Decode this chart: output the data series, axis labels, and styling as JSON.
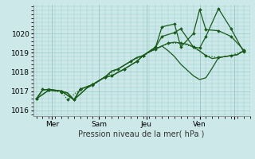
{
  "bg_color": "#cce8e8",
  "grid_color": "#99cccc",
  "line_color": "#1a5c1a",
  "ylim": [
    1015.7,
    1021.5
  ],
  "yticks": [
    1016,
    1017,
    1018,
    1019,
    1020
  ],
  "ylabel": "Pression niveau de la mer( hPa )",
  "xlim": [
    -0.5,
    34
  ],
  "xtick_pos": [
    2.5,
    10,
    17.5,
    26,
    31.5
  ],
  "xtick_labels": [
    "Mer",
    "Sam",
    "Jeu",
    "Ven",
    ""
  ],
  "vline_pos": [
    2.5,
    10,
    17.5,
    26,
    31.5
  ],
  "series": [
    {
      "x": [
        0,
        1,
        2,
        3,
        4,
        5,
        6,
        7,
        8,
        9,
        10,
        11,
        12,
        13,
        14,
        15,
        16,
        17,
        18,
        19,
        20,
        21,
        22,
        23,
        24,
        25,
        26,
        27,
        28,
        29,
        30,
        31,
        32,
        33
      ],
      "y": [
        1016.6,
        1017.05,
        1017.1,
        1017.05,
        1017.0,
        1016.9,
        1016.55,
        1016.85,
        1017.15,
        1017.35,
        1017.55,
        1017.75,
        1018.05,
        1018.15,
        1018.35,
        1018.55,
        1018.75,
        1018.85,
        1019.05,
        1019.2,
        1019.35,
        1019.5,
        1019.55,
        1019.5,
        1019.45,
        1019.3,
        1019.1,
        1018.85,
        1018.7,
        1018.75,
        1018.8,
        1018.85,
        1018.9,
        1019.1
      ],
      "linestyle": "solid",
      "marker": false,
      "lw": 0.9
    },
    {
      "x": [
        0,
        1,
        2,
        3,
        4,
        5,
        6,
        7,
        8,
        9,
        10,
        11,
        12,
        13,
        14,
        15,
        16,
        17,
        18,
        19,
        20,
        21,
        22,
        23,
        24,
        25,
        26,
        27,
        28,
        29,
        30,
        31,
        32,
        33
      ],
      "y": [
        1016.6,
        1017.05,
        1017.1,
        1017.05,
        1017.0,
        1016.9,
        1016.55,
        1016.85,
        1017.15,
        1017.35,
        1017.55,
        1017.75,
        1018.05,
        1018.15,
        1018.35,
        1018.55,
        1018.75,
        1018.85,
        1019.05,
        1019.2,
        1019.35,
        1019.1,
        1018.8,
        1018.4,
        1018.1,
        1017.8,
        1017.6,
        1017.7,
        1018.2,
        1018.75,
        1018.8,
        1018.85,
        1018.9,
        1019.1
      ],
      "linestyle": "solid",
      "marker": false,
      "lw": 0.9
    },
    {
      "x": [
        0,
        1,
        2,
        4,
        5,
        7,
        9,
        11,
        13,
        15,
        17,
        19,
        21,
        23,
        25,
        27,
        29,
        31,
        33
      ],
      "y": [
        1016.6,
        1017.1,
        1017.05,
        1016.95,
        1016.55,
        1017.1,
        1017.3,
        1017.75,
        1018.15,
        1018.55,
        1018.85,
        1019.2,
        1019.5,
        1019.5,
        1019.3,
        1018.85,
        1018.75,
        1018.85,
        1019.1
      ],
      "linestyle": "dotted",
      "marker": true,
      "lw": 0.9
    },
    {
      "x": [
        0,
        2,
        4,
        6,
        7,
        9,
        11,
        12,
        14,
        16,
        17,
        19,
        20,
        22,
        23,
        25,
        26,
        27,
        29,
        31,
        33
      ],
      "y": [
        1016.6,
        1017.05,
        1017.0,
        1016.55,
        1017.1,
        1017.35,
        1017.75,
        1017.8,
        1018.15,
        1018.55,
        1018.85,
        1019.3,
        1019.85,
        1020.05,
        1020.25,
        1019.3,
        1019.25,
        1019.85,
        1021.3,
        1020.25,
        1019.05
      ],
      "linestyle": "solid",
      "marker": true,
      "lw": 0.9
    },
    {
      "x": [
        0,
        2,
        4,
        6,
        7,
        9,
        11,
        12,
        14,
        16,
        17,
        19,
        20,
        22,
        23,
        25,
        26,
        27,
        29,
        31,
        33
      ],
      "y": [
        1016.6,
        1017.05,
        1017.0,
        1016.55,
        1017.1,
        1017.35,
        1017.75,
        1017.8,
        1018.15,
        1018.55,
        1018.85,
        1019.3,
        1020.35,
        1020.5,
        1019.3,
        1020.0,
        1021.25,
        1020.2,
        1020.15,
        1019.85,
        1019.15
      ],
      "linestyle": "solid",
      "marker": true,
      "lw": 0.9
    }
  ]
}
